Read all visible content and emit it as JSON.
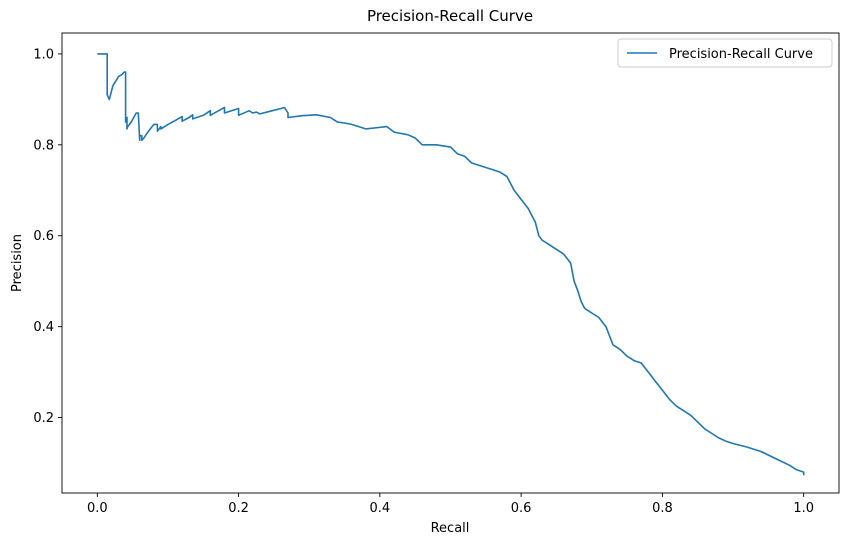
{
  "chart_data": {
    "type": "line",
    "title": "Precision-Recall Curve",
    "xlabel": "Recall",
    "ylabel": "Precision",
    "xlim": [
      -0.05,
      1.05
    ],
    "ylim": [
      0.034,
      1.046
    ],
    "xticks": [
      0.0,
      0.2,
      0.4,
      0.6,
      0.8,
      1.0
    ],
    "yticks": [
      0.2,
      0.4,
      0.6,
      0.8,
      1.0
    ],
    "xtick_labels": [
      "0.0",
      "0.2",
      "0.4",
      "0.6",
      "0.8",
      "1.0"
    ],
    "ytick_labels": [
      "0.2",
      "0.4",
      "0.6",
      "0.8",
      "1.0"
    ],
    "grid": false,
    "legend_position": "top-right",
    "series": [
      {
        "name": "Precision-Recall Curve",
        "color": "#1f77b4",
        "x": [
          0.0,
          0.014,
          0.014,
          0.017,
          0.022,
          0.03,
          0.035,
          0.038,
          0.04,
          0.04,
          0.042,
          0.042,
          0.043,
          0.043,
          0.048,
          0.055,
          0.058,
          0.06,
          0.06,
          0.063,
          0.063,
          0.066,
          0.07,
          0.075,
          0.08,
          0.085,
          0.085,
          0.09,
          0.09,
          0.1,
          0.11,
          0.12,
          0.12,
          0.13,
          0.135,
          0.135,
          0.15,
          0.16,
          0.16,
          0.175,
          0.18,
          0.18,
          0.19,
          0.2,
          0.2,
          0.215,
          0.22,
          0.225,
          0.23,
          0.245,
          0.26,
          0.265,
          0.27,
          0.27,
          0.29,
          0.31,
          0.33,
          0.34,
          0.35,
          0.36,
          0.37,
          0.38,
          0.41,
          0.42,
          0.44,
          0.45,
          0.46,
          0.47,
          0.48,
          0.5,
          0.51,
          0.52,
          0.53,
          0.54,
          0.55,
          0.56,
          0.57,
          0.58,
          0.59,
          0.6,
          0.61,
          0.62,
          0.625,
          0.63,
          0.635,
          0.64,
          0.65,
          0.66,
          0.67,
          0.675,
          0.68,
          0.685,
          0.69,
          0.695,
          0.7,
          0.71,
          0.72,
          0.73,
          0.74,
          0.75,
          0.76,
          0.77,
          0.78,
          0.79,
          0.8,
          0.81,
          0.82,
          0.83,
          0.84,
          0.85,
          0.86,
          0.87,
          0.88,
          0.89,
          0.9,
          0.92,
          0.94,
          0.96,
          0.98,
          0.99,
          1.0,
          1.0
        ],
        "y": [
          1.0,
          1.0,
          0.91,
          0.9,
          0.93,
          0.95,
          0.955,
          0.96,
          0.96,
          0.85,
          0.86,
          0.835,
          0.84,
          0.84,
          0.85,
          0.87,
          0.87,
          0.81,
          0.82,
          0.82,
          0.81,
          0.815,
          0.825,
          0.835,
          0.845,
          0.845,
          0.83,
          0.84,
          0.835,
          0.845,
          0.853,
          0.862,
          0.852,
          0.86,
          0.866,
          0.857,
          0.865,
          0.875,
          0.865,
          0.878,
          0.882,
          0.87,
          0.875,
          0.88,
          0.865,
          0.875,
          0.87,
          0.872,
          0.868,
          0.874,
          0.88,
          0.882,
          0.87,
          0.86,
          0.864,
          0.866,
          0.86,
          0.85,
          0.848,
          0.845,
          0.84,
          0.835,
          0.84,
          0.828,
          0.822,
          0.815,
          0.8,
          0.8,
          0.8,
          0.795,
          0.78,
          0.775,
          0.76,
          0.755,
          0.75,
          0.745,
          0.74,
          0.73,
          0.7,
          0.68,
          0.66,
          0.63,
          0.6,
          0.59,
          0.585,
          0.58,
          0.57,
          0.56,
          0.54,
          0.5,
          0.48,
          0.455,
          0.44,
          0.435,
          0.43,
          0.42,
          0.4,
          0.36,
          0.35,
          0.335,
          0.325,
          0.32,
          0.3,
          0.28,
          0.26,
          0.24,
          0.225,
          0.215,
          0.205,
          0.19,
          0.175,
          0.165,
          0.155,
          0.148,
          0.143,
          0.135,
          0.125,
          0.11,
          0.095,
          0.085,
          0.08,
          0.073
        ]
      }
    ]
  }
}
